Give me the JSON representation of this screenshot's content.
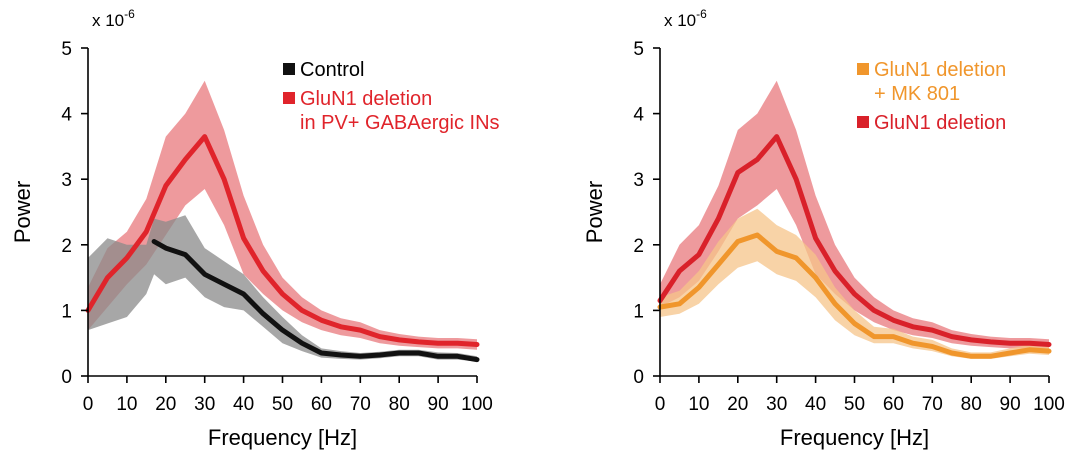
{
  "chart_data": [
    {
      "type": "line",
      "scale_label": "x 10",
      "scale_exponent": "-6",
      "xlabel": "Frequency [Hz]",
      "ylabel": "Power",
      "xlim": [
        0,
        100
      ],
      "ylim": [
        0,
        5
      ],
      "xticks": [
        0,
        10,
        20,
        30,
        40,
        50,
        60,
        70,
        80,
        90,
        100
      ],
      "yticks": [
        0,
        1,
        2,
        3,
        4,
        5
      ],
      "legend_position": "top-right",
      "series": [
        {
          "name": "GluN1 deletion\nin PV+ GABAergic INs",
          "color": "#e0242b",
          "band_color": "#e8787c",
          "x": [
            0,
            5,
            10,
            15,
            20,
            25,
            30,
            35,
            40,
            45,
            50,
            55,
            60,
            65,
            70,
            75,
            80,
            85,
            90,
            95,
            100
          ],
          "values": [
            1.0,
            1.5,
            1.8,
            2.2,
            2.9,
            3.3,
            3.65,
            3.0,
            2.1,
            1.6,
            1.25,
            1.0,
            0.85,
            0.75,
            0.7,
            0.6,
            0.55,
            0.52,
            0.5,
            0.5,
            0.48
          ],
          "lower": [
            0.7,
            1.05,
            1.4,
            1.7,
            2.15,
            2.6,
            2.85,
            2.3,
            1.55,
            1.25,
            1.0,
            0.82,
            0.7,
            0.62,
            0.58,
            0.5,
            0.46,
            0.44,
            0.42,
            0.42,
            0.4
          ],
          "upper": [
            1.35,
            1.95,
            2.2,
            2.7,
            3.65,
            4.0,
            4.5,
            3.75,
            2.75,
            2.0,
            1.5,
            1.2,
            1.0,
            0.88,
            0.82,
            0.7,
            0.64,
            0.6,
            0.58,
            0.58,
            0.56
          ]
        },
        {
          "name": "Control",
          "color": "#111111",
          "band_color": "#8a8a8a",
          "x": [
            17,
            20,
            25,
            30,
            35,
            40,
            45,
            50,
            55,
            60,
            65,
            70,
            75,
            80,
            85,
            90,
            95,
            100
          ],
          "values": [
            2.05,
            1.95,
            1.85,
            1.55,
            1.4,
            1.25,
            0.95,
            0.7,
            0.5,
            0.35,
            0.32,
            0.3,
            0.32,
            0.35,
            0.35,
            0.3,
            0.3,
            0.25
          ],
          "lower": [
            1.55,
            1.4,
            1.5,
            1.2,
            1.05,
            1.0,
            0.75,
            0.5,
            0.38,
            0.28,
            0.26,
            0.25,
            0.27,
            0.3,
            0.3,
            0.25,
            0.25,
            0.22
          ],
          "upper": [
            2.4,
            2.35,
            2.45,
            1.95,
            1.75,
            1.55,
            1.2,
            0.9,
            0.62,
            0.42,
            0.38,
            0.35,
            0.37,
            0.4,
            0.4,
            0.36,
            0.35,
            0.3
          ],
          "band_x": [
            0,
            5,
            10,
            15,
            17
          ],
          "band_lower": [
            0.7,
            0.8,
            0.9,
            1.25,
            1.55
          ],
          "band_upper": [
            1.8,
            2.1,
            2.0,
            2.0,
            2.4
          ]
        }
      ]
    },
    {
      "type": "line",
      "scale_label": "x 10",
      "scale_exponent": "-6",
      "xlabel": "Frequency [Hz]",
      "ylabel": "Power",
      "xlim": [
        0,
        100
      ],
      "ylim": [
        0,
        5
      ],
      "xticks": [
        0,
        10,
        20,
        30,
        40,
        50,
        60,
        70,
        80,
        90,
        100
      ],
      "yticks": [
        0,
        1,
        2,
        3,
        4,
        5
      ],
      "legend_position": "top-right",
      "series": [
        {
          "name": "GluN1 deletion",
          "color": "#d9212a",
          "band_color": "#e8787c",
          "x": [
            0,
            5,
            10,
            15,
            20,
            25,
            30,
            35,
            40,
            45,
            50,
            55,
            60,
            65,
            70,
            75,
            80,
            85,
            90,
            95,
            100
          ],
          "values": [
            1.15,
            1.6,
            1.85,
            2.4,
            3.1,
            3.3,
            3.65,
            3.0,
            2.1,
            1.6,
            1.25,
            1.0,
            0.85,
            0.75,
            0.7,
            0.6,
            0.55,
            0.52,
            0.5,
            0.5,
            0.48
          ],
          "lower": [
            1.05,
            1.2,
            1.45,
            1.9,
            2.4,
            2.6,
            2.85,
            2.3,
            1.55,
            1.25,
            1.0,
            0.82,
            0.7,
            0.62,
            0.58,
            0.5,
            0.46,
            0.44,
            0.42,
            0.42,
            0.4
          ],
          "upper": [
            1.4,
            2.0,
            2.3,
            2.9,
            3.75,
            4.0,
            4.5,
            3.75,
            2.75,
            2.0,
            1.5,
            1.2,
            1.0,
            0.88,
            0.82,
            0.7,
            0.64,
            0.6,
            0.58,
            0.58,
            0.56
          ]
        },
        {
          "name": "GluN1 deletion\n+ MK 801",
          "color": "#f0962c",
          "band_color": "#f6c48a",
          "x": [
            0,
            5,
            10,
            15,
            20,
            25,
            30,
            35,
            40,
            45,
            50,
            55,
            60,
            65,
            70,
            75,
            80,
            85,
            90,
            95,
            100
          ],
          "values": [
            1.05,
            1.1,
            1.35,
            1.7,
            2.05,
            2.15,
            1.9,
            1.8,
            1.5,
            1.1,
            0.8,
            0.6,
            0.6,
            0.5,
            0.45,
            0.35,
            0.3,
            0.3,
            0.35,
            0.4,
            0.38
          ],
          "lower": [
            0.9,
            0.95,
            1.1,
            1.4,
            1.65,
            1.75,
            1.55,
            1.45,
            1.2,
            0.85,
            0.62,
            0.5,
            0.5,
            0.42,
            0.38,
            0.3,
            0.26,
            0.26,
            0.3,
            0.34,
            0.32
          ],
          "upper": [
            1.2,
            1.3,
            1.6,
            2.05,
            2.4,
            2.55,
            2.3,
            2.15,
            1.85,
            1.35,
            1.0,
            0.75,
            0.72,
            0.6,
            0.55,
            0.42,
            0.36,
            0.36,
            0.42,
            0.48,
            0.46
          ]
        }
      ]
    }
  ]
}
